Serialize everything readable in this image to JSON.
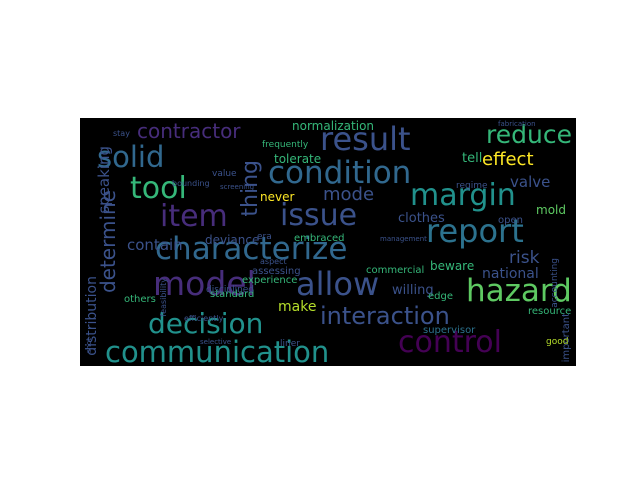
{
  "colors": {
    "background": "#000000",
    "page": "#ffffff",
    "palette": [
      "#3b528b",
      "#21918c",
      "#5ec962",
      "#b5de2b",
      "#fde725",
      "#440154",
      "#31688e",
      "#35b779",
      "#2c728e",
      "#472d7b"
    ]
  },
  "words": [
    "communication",
    "characterize",
    "condition",
    "decision",
    "hazard",
    "report",
    "control",
    "interaction",
    "allow",
    "issue",
    "margin",
    "result",
    "model",
    "item",
    "tool",
    "solid",
    "reduce",
    "contractor",
    "determine",
    "effect",
    "thing",
    "mode",
    "risk",
    "valve",
    "national",
    "contain",
    "speaking",
    "distribution",
    "normalization",
    "tolerate",
    "never",
    "deviance",
    "clothes",
    "beware",
    "willing",
    "make",
    "tell",
    "mold",
    "edge",
    "open",
    "supervisor",
    "resource",
    "embraced",
    "standard",
    "experience",
    "assessing",
    "commercial",
    "others",
    "important",
    "good",
    "frequently",
    "regime",
    "value",
    "disciplined",
    "liner",
    "fabrication",
    "feasibility",
    "bounding",
    "screening",
    "stay",
    "efficiently",
    "selective",
    "management",
    "aspect",
    "era",
    "accounting",
    "shot"
  ]
}
